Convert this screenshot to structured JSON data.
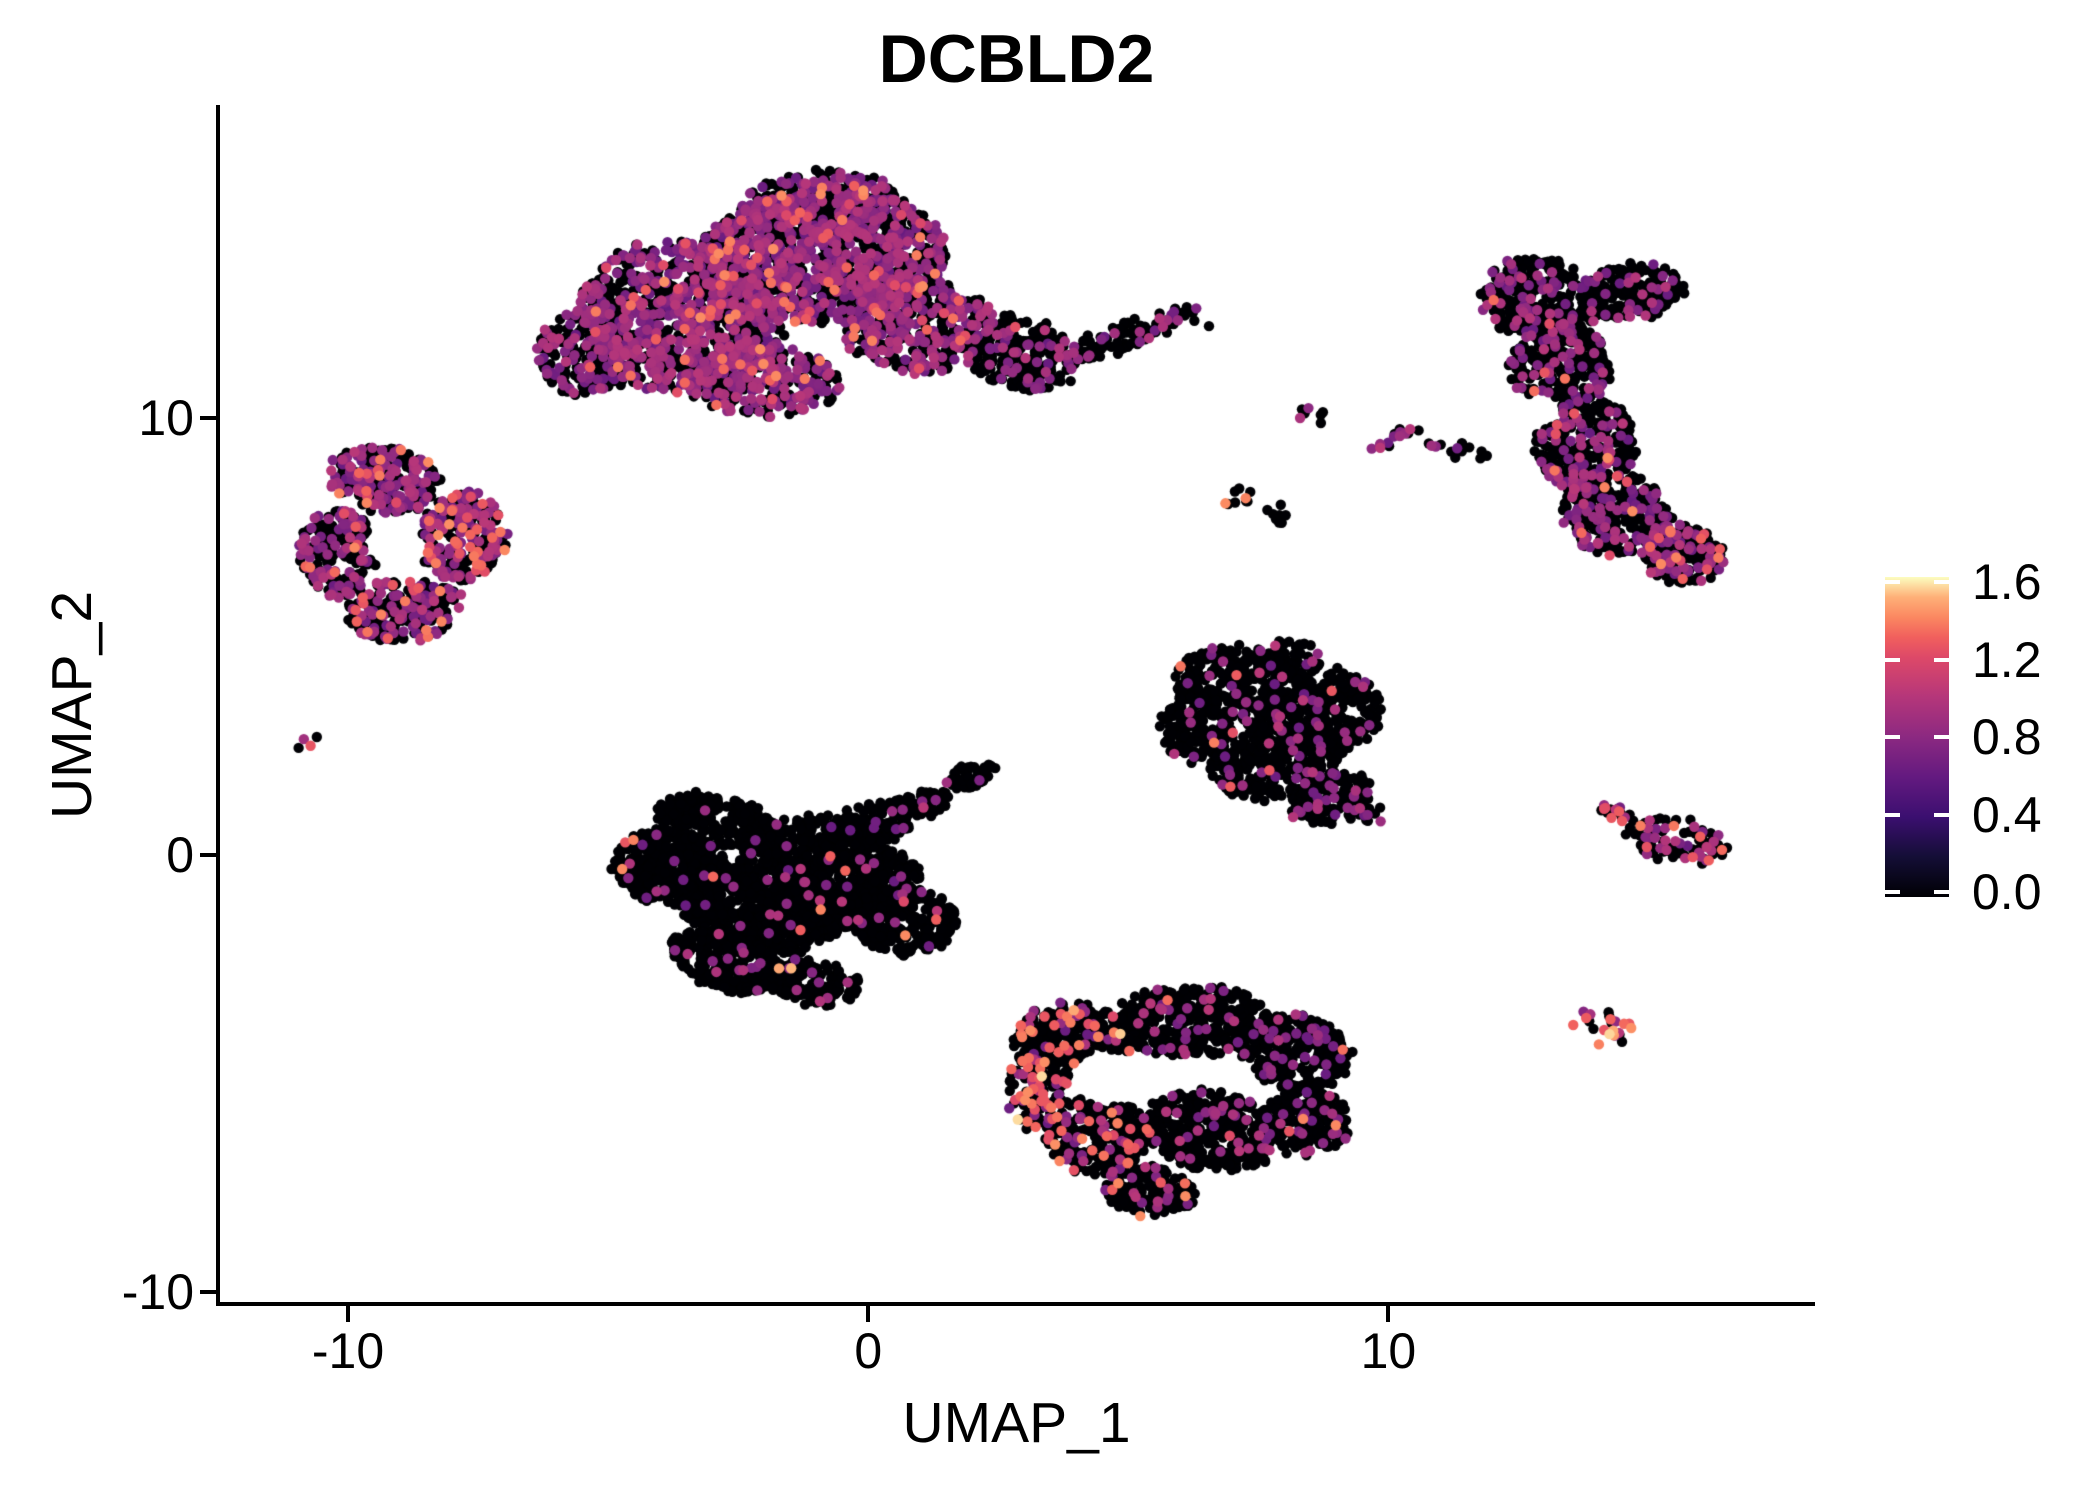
{
  "title": "DCBLD2",
  "axes": {
    "x": {
      "label": "UMAP_1",
      "tick_labels": [
        "-10",
        "0",
        "10"
      ],
      "tick_values": [
        -10,
        0,
        10
      ]
    },
    "y": {
      "label": "UMAP_2",
      "tick_labels": [
        "10",
        "0",
        "-10"
      ],
      "tick_values": [
        10,
        0,
        -10
      ]
    }
  },
  "legend": {
    "tick_labels": [
      "1.6",
      "1.2",
      "0.8",
      "0.4",
      "0.0"
    ],
    "tick_values": [
      1.6,
      1.2,
      0.8,
      0.4,
      0.0
    ],
    "min": 0.0,
    "max": 1.6
  },
  "chart_data": {
    "type": "scatter",
    "title": "DCBLD2",
    "xlabel": "UMAP_1",
    "ylabel": "UMAP_2",
    "xlim": [
      -12.5,
      18.2
    ],
    "ylim": [
      -10.32,
      17.16
    ],
    "x_ticks": [
      -10,
      0,
      10
    ],
    "y_ticks": [
      -10,
      0,
      10
    ],
    "grid": false,
    "background": "#ffffff",
    "point_radius_px": 5.2,
    "seed": 20,
    "color_scale": {
      "name": "magma",
      "min": 0.0,
      "max": 1.6,
      "stops": [
        [
          0.0,
          "#000004"
        ],
        [
          0.125,
          "#140e36"
        ],
        [
          0.25,
          "#3b0f70"
        ],
        [
          0.375,
          "#641a80"
        ],
        [
          0.5,
          "#8c2981"
        ],
        [
          0.625,
          "#b5367a"
        ],
        [
          0.75,
          "#de4968"
        ],
        [
          0.8125,
          "#f1605d"
        ],
        [
          0.875,
          "#fb8861"
        ],
        [
          0.9375,
          "#feb078"
        ],
        [
          1.0,
          "#fcfdbf"
        ]
      ]
    },
    "clusters": [
      {
        "name": "top-large-cluster",
        "blobs": [
          [
            -0.9,
            14.85,
            1.55,
            0.8,
            0,
            300,
            0.55,
            0.42,
            0.03,
            0.002
          ],
          [
            -3.6,
            12.3,
            2.0,
            1.75,
            -15,
            950,
            0.5,
            0.46,
            0.04,
            0.003
          ],
          [
            -0.9,
            13.7,
            2.4,
            1.5,
            5,
            1200,
            0.55,
            0.42,
            0.03,
            0.002
          ],
          [
            0.9,
            12.2,
            1.5,
            1.15,
            0,
            450,
            0.55,
            0.42,
            0.03,
            0
          ],
          [
            -5.4,
            11.5,
            1.0,
            0.95,
            25,
            230,
            0.58,
            0.4,
            0.02,
            0
          ],
          [
            -2.1,
            10.85,
            1.5,
            0.8,
            -5,
            320,
            0.52,
            0.44,
            0.04,
            0
          ],
          [
            2.9,
            11.5,
            1.2,
            0.8,
            -20,
            270,
            0.78,
            0.21,
            0.01,
            0
          ],
          [
            4.9,
            11.85,
            1.3,
            0.28,
            24,
            90,
            0.85,
            0.13,
            0.02,
            0
          ],
          [
            6.05,
            12.4,
            0.28,
            0.22,
            0,
            10,
            0.5,
            0.3,
            0.2,
            0
          ]
        ],
        "holes": [
          [
            1.95,
            13.2,
            0.42,
            0.5
          ]
        ],
        "pts": [
          [
            6.55,
            12.1,
            0
          ]
        ]
      },
      {
        "name": "left-ring-cluster",
        "blobs": [
          [
            -9.3,
            8.6,
            1.05,
            0.75,
            -10,
            260,
            0.62,
            0.34,
            0.04,
            0
          ],
          [
            -10.2,
            6.9,
            0.75,
            1.0,
            0,
            200,
            0.62,
            0.34,
            0.04,
            0
          ],
          [
            -8.9,
            5.6,
            1.1,
            0.7,
            10,
            240,
            0.58,
            0.36,
            0.06,
            0
          ],
          [
            -7.8,
            7.3,
            0.85,
            1.0,
            0,
            260,
            0.5,
            0.38,
            0.12,
            0
          ]
        ],
        "holes": [
          [
            -9.1,
            7.1,
            0.6,
            0.5
          ]
        ],
        "pts": []
      },
      {
        "name": "tiny-far-left-pair",
        "blobs": [],
        "holes": [],
        "pts": [
          [
            -10.85,
            2.65,
            0.9
          ],
          [
            -10.72,
            2.5,
            1.25
          ],
          [
            -10.95,
            2.45,
            0
          ],
          [
            -10.6,
            2.7,
            0
          ]
        ]
      },
      {
        "name": "right-crescent-cluster",
        "blobs": [
          [
            12.9,
            12.7,
            1.15,
            0.95,
            -20,
            300,
            0.8,
            0.19,
            0.01,
            0
          ],
          [
            14.7,
            12.9,
            0.95,
            0.65,
            10,
            180,
            0.82,
            0.17,
            0.01,
            0
          ],
          [
            13.3,
            11.2,
            0.95,
            1.05,
            0,
            280,
            0.8,
            0.19,
            0.01,
            0
          ],
          [
            13.8,
            9.4,
            0.95,
            1.1,
            0,
            280,
            0.78,
            0.2,
            0.02,
            0
          ],
          [
            14.4,
            7.8,
            1.05,
            0.95,
            -30,
            300,
            0.7,
            0.27,
            0.03,
            0
          ],
          [
            15.6,
            6.9,
            0.85,
            0.65,
            -15,
            180,
            0.68,
            0.28,
            0.04,
            0
          ]
        ],
        "holes": [
          [
            12.95,
            10.2,
            0.35,
            0.4
          ]
        ],
        "pts": []
      },
      {
        "name": "small-mid-streaks",
        "blobs": [
          [
            8.55,
            10.1,
            0.28,
            0.22,
            0,
            7,
            0.72,
            0.28,
            0,
            0
          ],
          [
            10.05,
            9.5,
            0.62,
            0.16,
            25,
            14,
            0.25,
            0.65,
            0.1,
            0
          ],
          [
            11.4,
            9.25,
            0.75,
            0.18,
            -18,
            16,
            0.88,
            0.12,
            0,
            0
          ],
          [
            7.1,
            8.15,
            0.33,
            0.25,
            -20,
            9,
            0.84,
            0.05,
            0.11,
            0
          ],
          [
            7.95,
            7.8,
            0.3,
            0.22,
            -20,
            8,
            0.95,
            0.05,
            0,
            0
          ]
        ],
        "holes": [],
        "pts": []
      },
      {
        "name": "middle-right-triangle-cluster",
        "blobs": [
          [
            8.1,
            4.5,
            0.7,
            0.4,
            0,
            60,
            0.9,
            0.1,
            0,
            0
          ],
          [
            7.2,
            3.9,
            1.3,
            0.85,
            -10,
            330,
            0.93,
            0.065,
            0.005,
            0
          ],
          [
            8.8,
            3.3,
            1.05,
            0.95,
            0,
            300,
            0.92,
            0.075,
            0.005,
            0
          ],
          [
            7.8,
            2.2,
            1.3,
            0.9,
            10,
            330,
            0.93,
            0.065,
            0.005,
            0
          ],
          [
            8.9,
            1.3,
            0.8,
            0.6,
            20,
            150,
            0.9,
            0.1,
            0,
            0
          ],
          [
            6.3,
            2.9,
            0.7,
            0.75,
            0,
            140,
            0.93,
            0.07,
            0,
            0
          ],
          [
            9.6,
            0.9,
            0.35,
            0.25,
            0,
            12,
            0.8,
            0.2,
            0,
            0
          ]
        ],
        "holes": [],
        "pts": []
      },
      {
        "name": "center-left-black-cluster",
        "blobs": [
          [
            -3.8,
            -0.3,
            1.15,
            0.85,
            -15,
            350,
            0.965,
            0.03,
            0.005,
            0
          ],
          [
            -3.0,
            0.8,
            1.05,
            0.6,
            -10,
            200,
            0.97,
            0.03,
            0,
            0
          ],
          [
            -2.0,
            -1.2,
            1.6,
            1.05,
            -8,
            600,
            0.965,
            0.03,
            0.005,
            0
          ],
          [
            -1.2,
            0.3,
            1.3,
            0.65,
            0,
            240,
            0.97,
            0.03,
            0,
            0
          ],
          [
            -0.4,
            -0.7,
            1.45,
            0.95,
            8,
            500,
            0.96,
            0.033,
            0.007,
            0
          ],
          [
            0.7,
            -1.5,
            1.0,
            0.75,
            0,
            240,
            0.95,
            0.04,
            0.01,
            0
          ],
          [
            -2.7,
            -2.4,
            1.15,
            0.65,
            -25,
            250,
            0.96,
            0.04,
            0,
            0
          ],
          [
            -1.1,
            -2.9,
            0.95,
            0.5,
            -12,
            160,
            0.946,
            0.04,
            0.01,
            0.004
          ],
          [
            0.1,
            0.7,
            0.8,
            0.5,
            25,
            150,
            0.96,
            0.04,
            0,
            0
          ],
          [
            1.0,
            1.15,
            0.6,
            0.3,
            20,
            70,
            0.97,
            0.03,
            0,
            0
          ],
          [
            1.95,
            1.8,
            0.5,
            0.28,
            25,
            55,
            0.95,
            0.05,
            0,
            0
          ]
        ],
        "holes": [],
        "pts": []
      },
      {
        "name": "bottom-center-cluster",
        "blobs": [
          [
            3.9,
            -4.3,
            1.1,
            0.9,
            0,
            300,
            0.82,
            0.08,
            0.09,
            0.01
          ],
          [
            6.2,
            -3.8,
            1.5,
            0.8,
            0,
            380,
            0.9,
            0.085,
            0.015,
            0
          ],
          [
            8.2,
            -4.5,
            1.1,
            0.85,
            -20,
            300,
            0.88,
            0.11,
            0.01,
            0
          ],
          [
            4.4,
            -6.4,
            1.0,
            0.9,
            0,
            280,
            0.845,
            0.09,
            0.06,
            0.005
          ],
          [
            6.6,
            -6.3,
            1.3,
            0.9,
            -10,
            380,
            0.9,
            0.09,
            0.01,
            0
          ],
          [
            8.4,
            -6.1,
            0.9,
            0.75,
            0,
            220,
            0.88,
            0.11,
            0.01,
            0
          ],
          [
            5.4,
            -7.7,
            0.9,
            0.55,
            -10,
            150,
            0.85,
            0.1,
            0.05,
            0
          ],
          [
            3.2,
            -5.4,
            0.55,
            0.9,
            0,
            130,
            0.74,
            0.1,
            0.15,
            0.01
          ]
        ],
        "holes": [
          [
            4.6,
            -5.1,
            0.75,
            0.65
          ]
        ],
        "pts": []
      },
      {
        "name": "right-wedge-cluster",
        "blobs": [
          [
            15.55,
            0.35,
            1.0,
            0.5,
            -12,
            90,
            0.72,
            0.2,
            0.08,
            0
          ],
          [
            14.5,
            0.95,
            0.45,
            0.22,
            -25,
            18,
            0.35,
            0.55,
            0.1,
            0
          ]
        ],
        "holes": [],
        "pts": [
          [
            15.85,
            -0.05,
            1.25
          ],
          [
            15.97,
            0.05,
            0.9
          ]
        ]
      },
      {
        "name": "small-round-right-cluster",
        "blobs": [
          [
            14.1,
            -4.0,
            0.55,
            0.5,
            0,
            22,
            0.42,
            0.25,
            0.25,
            0.08
          ]
        ],
        "holes": [],
        "pts": [
          [
            14.25,
            -4.1,
            1.55
          ]
        ]
      }
    ]
  }
}
